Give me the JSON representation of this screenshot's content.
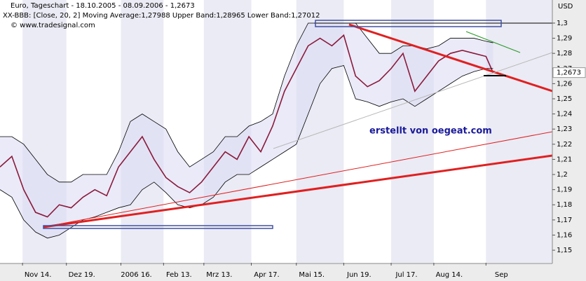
{
  "chart_data": {
    "type": "line",
    "title": "Euro, Tageschart - 18.10.2005 - 08.09.2006 - 1,2673",
    "subtitle": "XX-BBB: [Close, 20, 2] Moving Average:1,27988 Upper Band:1,28965 Lower Band:1,27012",
    "source": "© www.tradesignal.com",
    "annotation": "erstellt von oegeat.com",
    "y_axis_label": "USD",
    "price_marker": {
      "value": 1.2673,
      "label": "1,2673"
    },
    "x": [
      0,
      5,
      10,
      15,
      20,
      25,
      30,
      35,
      40,
      45,
      50,
      55,
      60,
      65,
      70,
      75,
      80,
      85,
      90,
      95,
      100,
      105,
      110,
      115,
      120,
      125,
      130,
      135,
      140,
      145,
      150,
      155,
      160,
      165,
      170,
      175,
      180,
      185,
      190,
      195,
      200,
      205,
      208
    ],
    "series": [
      {
        "name": "Close",
        "color": "#8b1a3a",
        "values": [
          1.205,
          1.212,
          1.19,
          1.175,
          1.172,
          1.18,
          1.178,
          1.185,
          1.19,
          1.186,
          1.205,
          1.215,
          1.225,
          1.21,
          1.198,
          1.192,
          1.188,
          1.195,
          1.205,
          1.215,
          1.21,
          1.225,
          1.215,
          1.232,
          1.255,
          1.27,
          1.285,
          1.29,
          1.285,
          1.292,
          1.265,
          1.258,
          1.262,
          1.27,
          1.28,
          1.255,
          1.265,
          1.275,
          1.28,
          1.282,
          1.28,
          1.278,
          1.2673
        ]
      },
      {
        "name": "Upper Band",
        "color": "#000000",
        "values": [
          1.225,
          1.225,
          1.22,
          1.21,
          1.2,
          1.195,
          1.195,
          1.2,
          1.2,
          1.2,
          1.215,
          1.235,
          1.24,
          1.235,
          1.23,
          1.215,
          1.205,
          1.21,
          1.215,
          1.225,
          1.225,
          1.232,
          1.235,
          1.24,
          1.265,
          1.285,
          1.3,
          1.3,
          1.3,
          1.3,
          1.3,
          1.29,
          1.28,
          1.28,
          1.285,
          1.285,
          1.283,
          1.285,
          1.29,
          1.29,
          1.29,
          1.288,
          1.287
        ]
      },
      {
        "name": "Lower Band",
        "color": "#000000",
        "values": [
          1.19,
          1.185,
          1.17,
          1.162,
          1.158,
          1.16,
          1.165,
          1.17,
          1.172,
          1.175,
          1.178,
          1.18,
          1.19,
          1.195,
          1.188,
          1.18,
          1.178,
          1.18,
          1.185,
          1.195,
          1.2,
          1.2,
          1.205,
          1.21,
          1.215,
          1.22,
          1.24,
          1.26,
          1.27,
          1.272,
          1.25,
          1.248,
          1.245,
          1.248,
          1.25,
          1.245,
          1.25,
          1.255,
          1.26,
          1.265,
          1.268,
          1.27,
          1.27
        ]
      }
    ],
    "xlim": [
      0,
      233
    ],
    "xticks": [
      {
        "value": 9.5,
        "label": "Nov 14."
      },
      {
        "value": 28,
        "label": "Dez 19."
      },
      {
        "value": 51,
        "label": "2006 16."
      },
      {
        "value": 69,
        "label": "Feb 13."
      },
      {
        "value": 86,
        "label": "Mrz 13."
      },
      {
        "value": 106,
        "label": "Apr 17."
      },
      {
        "value": 125,
        "label": "Mai 15."
      },
      {
        "value": 145,
        "label": "Jun 19."
      },
      {
        "value": 165,
        "label": "Jul 17."
      },
      {
        "value": 183,
        "label": "Aug 14."
      },
      {
        "value": 205,
        "label": "Sep"
      }
    ],
    "ylim": [
      1.1417,
      1.306
    ],
    "yticks": [
      {
        "value": 1.15,
        "label": "1,15"
      },
      {
        "value": 1.16,
        "label": "1,16"
      },
      {
        "value": 1.17,
        "label": "1,17"
      },
      {
        "value": 1.18,
        "label": "1,18"
      },
      {
        "value": 1.19,
        "label": "1,19"
      },
      {
        "value": 1.2,
        "label": "1,2"
      },
      {
        "value": 1.21,
        "label": "1,21"
      },
      {
        "value": 1.22,
        "label": "1,22"
      },
      {
        "value": 1.23,
        "label": "1,23"
      },
      {
        "value": 1.24,
        "label": "1,24"
      },
      {
        "value": 1.25,
        "label": "1,25"
      },
      {
        "value": 1.26,
        "label": "1,26"
      },
      {
        "value": 1.27,
        "label": "1,27"
      },
      {
        "value": 1.28,
        "label": "1,28"
      },
      {
        "value": 1.29,
        "label": "1,29"
      },
      {
        "value": 1.3,
        "label": "1,3"
      }
    ]
  }
}
